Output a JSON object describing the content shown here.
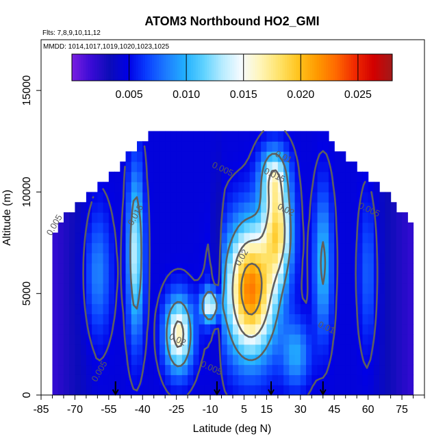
{
  "chart_data": {
    "type": "heatmap",
    "title": "ATOM3 Northbound HO2_GMI",
    "subtitle_flights": "Flts: 7,8,9,10,11,12",
    "subtitle_dates": "MMDD: 1014,1017,1019,1020,1023,1025",
    "xlabel": "Latitude (deg N)",
    "ylabel": "Altitude (m)",
    "xlim": [
      -85,
      85
    ],
    "ylim": [
      0,
      17500
    ],
    "x_tick_labels": [
      -85,
      -70,
      -55,
      -40,
      -25,
      -10,
      5,
      15,
      30,
      45,
      60,
      75
    ],
    "x_tick_values": [
      -85,
      -70,
      -55,
      -40,
      -25,
      -10,
      5,
      15,
      30,
      45,
      60,
      75
    ],
    "x_minor_ticks": [
      -80,
      -75,
      -65,
      -60,
      -50,
      -45,
      -35,
      -30,
      -20,
      -15,
      -5,
      0,
      10,
      20,
      25,
      35,
      40,
      50,
      55,
      65,
      70,
      80,
      85
    ],
    "y_ticks": [
      0,
      5000,
      10000,
      15000
    ],
    "colorbar": {
      "min": 0,
      "max": 0.028,
      "tick_values": [
        0.005,
        0.01,
        0.015,
        0.02,
        0.025
      ],
      "tick_labels": [
        "0.005",
        "0.010",
        "0.015",
        "0.020",
        "0.025"
      ],
      "colors": [
        "#7a1fe0",
        "#3a0bd6",
        "#0c0cb8",
        "#0000e6",
        "#0a40ff",
        "#1d7cff",
        "#22b0ff",
        "#5fd2ff",
        "#b8ecff",
        "#f7fbff",
        "#fff5b8",
        "#ffe36a",
        "#ffc41e",
        "#ff9a00",
        "#ff6a00",
        "#f02a00",
        "#d30000",
        "#a11a1a"
      ]
    },
    "flight_markers_lat": [
      -52,
      -7,
      17,
      40
    ],
    "contour_labels": [
      {
        "text": "0.005",
        "lat": -78,
        "alt": 8300
      },
      {
        "text": "0.015",
        "lat": -42,
        "alt": 8800
      },
      {
        "text": "0.005",
        "lat": -5,
        "alt": 11000
      },
      {
        "text": "0.01",
        "lat": 22,
        "alt": 11600
      },
      {
        "text": "0.015",
        "lat": 18,
        "alt": 10700
      },
      {
        "text": "0.02",
        "lat": 23,
        "alt": 9000
      },
      {
        "text": "0.02",
        "lat": 5,
        "alt": 6700
      },
      {
        "text": "0.02",
        "lat": -25,
        "alt": 2600
      },
      {
        "text": "0.005",
        "lat": 60,
        "alt": 9000
      },
      {
        "text": "0.005",
        "lat": -58,
        "alt": 1100
      },
      {
        "text": "0.005",
        "lat": -10,
        "alt": 1200
      },
      {
        "text": "0.01",
        "lat": 41,
        "alt": 3200
      }
    ],
    "grid": false,
    "legend": "colorbar-top"
  }
}
